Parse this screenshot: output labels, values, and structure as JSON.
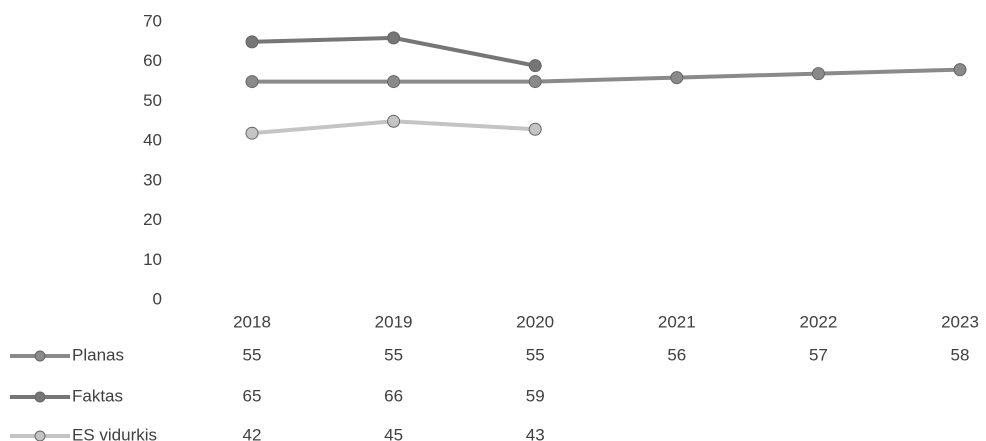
{
  "chart_data": {
    "type": "line",
    "categories": [
      "2018",
      "2019",
      "2020",
      "2021",
      "2022",
      "2023"
    ],
    "series": [
      {
        "name": "Planas",
        "color": "#8a8a8a",
        "values": [
          55,
          55,
          55,
          56,
          57,
          58
        ]
      },
      {
        "name": "Faktas",
        "color": "#767676",
        "values": [
          65,
          66,
          59,
          null,
          null,
          null
        ]
      },
      {
        "name": "ES vidurkis",
        "color": "#c4c4c4",
        "values": [
          42,
          45,
          43,
          null,
          null,
          null
        ]
      }
    ],
    "ylim": [
      0,
      70
    ],
    "yticks": [
      0,
      10,
      20,
      30,
      40,
      50,
      60,
      70
    ],
    "grid": false
  }
}
